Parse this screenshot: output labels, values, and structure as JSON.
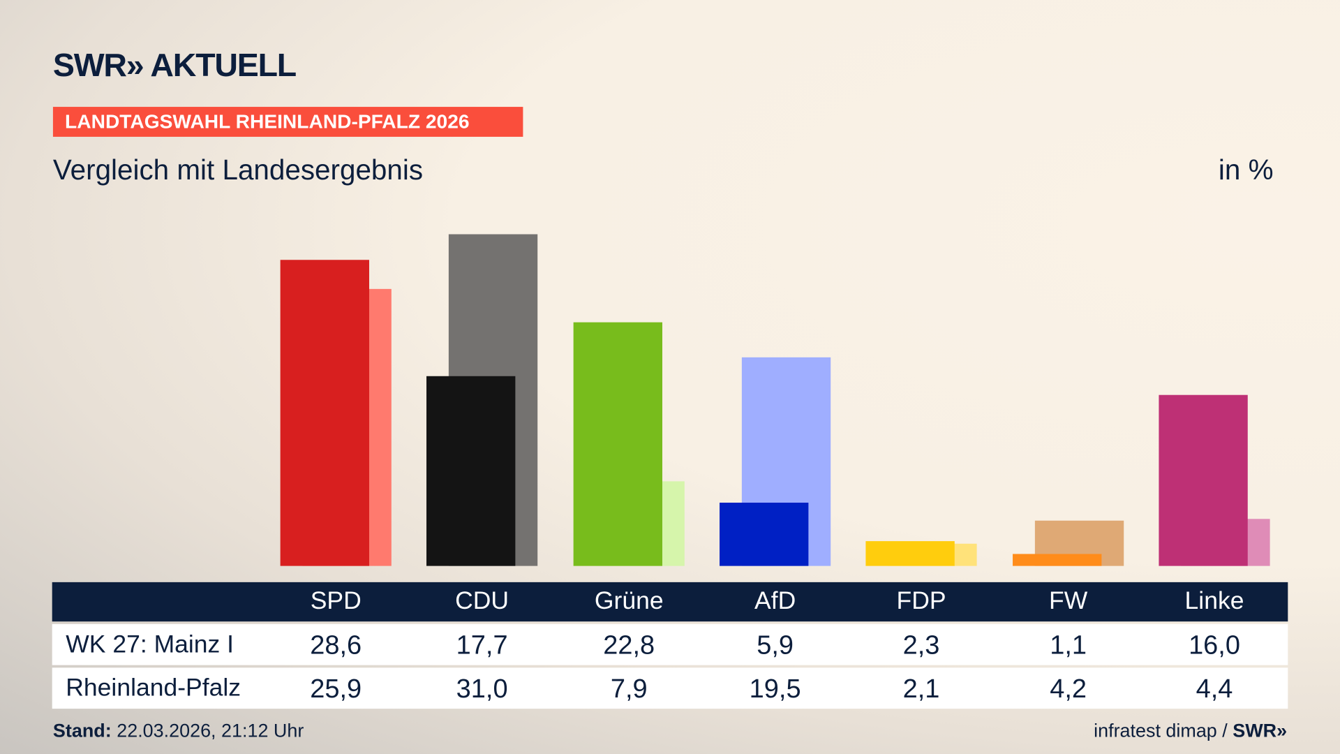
{
  "header": {
    "logo": "SWR» AKTUELL",
    "tag": "LANDTAGSWAHL RHEINLAND-PFALZ 2026",
    "subtitle": "Vergleich mit Landesergebnis",
    "unit": "in %"
  },
  "footer": {
    "stand_label": "Stand:",
    "stand_value": " 22.03.2026, 21:12 Uhr",
    "source": "infratest dimap / ",
    "source_logo": "SWR»"
  },
  "chart_data": {
    "type": "bar",
    "title": "Vergleich mit Landesergebnis",
    "ylabel": "in %",
    "ylim": [
      0,
      31
    ],
    "categories": [
      "SPD",
      "CDU",
      "Grüne",
      "AfD",
      "FDP",
      "FW",
      "Linke"
    ],
    "series": [
      {
        "name": "WK 27: Mainz I",
        "values": [
          "28,6",
          "17,7",
          "22,8",
          "5,9",
          "2,3",
          "1,1",
          "16,0"
        ],
        "colors": [
          "#d81f1f",
          "#141414",
          "#78bc1c",
          "#0020c4",
          "#ffcd0d",
          "#ff8c1a",
          "#be3075"
        ]
      },
      {
        "name": "Rheinland-Pfalz",
        "values": [
          "25,9",
          "31,0",
          "7,9",
          "19,5",
          "2,1",
          "4,2",
          "4,4"
        ],
        "colors": [
          "#ff7a6e",
          "#747270",
          "#d6f5ab",
          "#9faeff",
          "#ffe27a",
          "#dfa975",
          "#df8cb7"
        ]
      }
    ]
  }
}
